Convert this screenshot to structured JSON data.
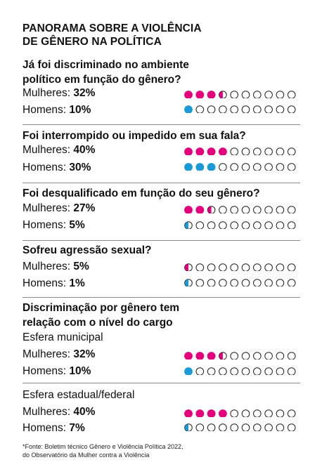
{
  "title": [
    "PANORAMA SOBRE A VIOLÊNCIA",
    "DE GÊNERO NA POLÍTICA"
  ],
  "colors": {
    "women": "#e4007c",
    "men": "#1a9ad6",
    "empty_stroke": "#222222",
    "rule": "#8a8a8a"
  },
  "labels": {
    "women": "Mulheres:",
    "men": "Homens:"
  },
  "chart_data": [
    {
      "type": "dot_matrix",
      "title": [
        "Já foi discriminado no ambiente",
        "político em função do gênero?"
      ],
      "units_per_dot": 10,
      "series": [
        {
          "name": "Mulheres",
          "value_label": "32%",
          "value": 32
        },
        {
          "name": "Homens",
          "value_label": "10%",
          "value": 10
        }
      ]
    },
    {
      "type": "dot_matrix",
      "title": [
        "Foi interrompido ou impedido em sua fala?"
      ],
      "units_per_dot": 10,
      "series": [
        {
          "name": "Mulheres",
          "value_label": "40%",
          "value": 40
        },
        {
          "name": "Homens",
          "value_label": "30%",
          "value": 30
        }
      ]
    },
    {
      "type": "dot_matrix",
      "title": [
        "Foi desqualificado em função do seu gênero?"
      ],
      "units_per_dot": 10,
      "series": [
        {
          "name": "Mulheres",
          "value_label": "27%",
          "value": 27
        },
        {
          "name": "Homens",
          "value_label": "5%",
          "value": 5
        }
      ]
    },
    {
      "type": "dot_matrix",
      "title": [
        "Sofreu agressão sexual?"
      ],
      "units_per_dot": 10,
      "series": [
        {
          "name": "Mulheres",
          "value_label": "5%",
          "value": 5
        },
        {
          "name": "Homens",
          "value_label": "1%",
          "value": 1
        }
      ]
    },
    {
      "type": "dot_matrix",
      "title": [
        "Discriminação por gênero tem",
        "relação com o nível do cargo"
      ],
      "subtitle": "Esfera municipal",
      "units_per_dot": 10,
      "series": [
        {
          "name": "Mulheres",
          "value_label": "32%",
          "value": 32
        },
        {
          "name": "Homens",
          "value_label": "10%",
          "value": 10
        }
      ]
    },
    {
      "type": "dot_matrix",
      "title": [],
      "subtitle": "Esfera estadual/federal",
      "units_per_dot": 10,
      "series": [
        {
          "name": "Mulheres",
          "value_label": "40%",
          "value": 40
        },
        {
          "name": "Homens",
          "value_label": "7%",
          "value": 7
        }
      ]
    }
  ],
  "footnote": [
    "*Fonte: Boletim técnico Gênero e Violência Política 2022,",
    "do Observatório da Mulher contra a Violência"
  ]
}
